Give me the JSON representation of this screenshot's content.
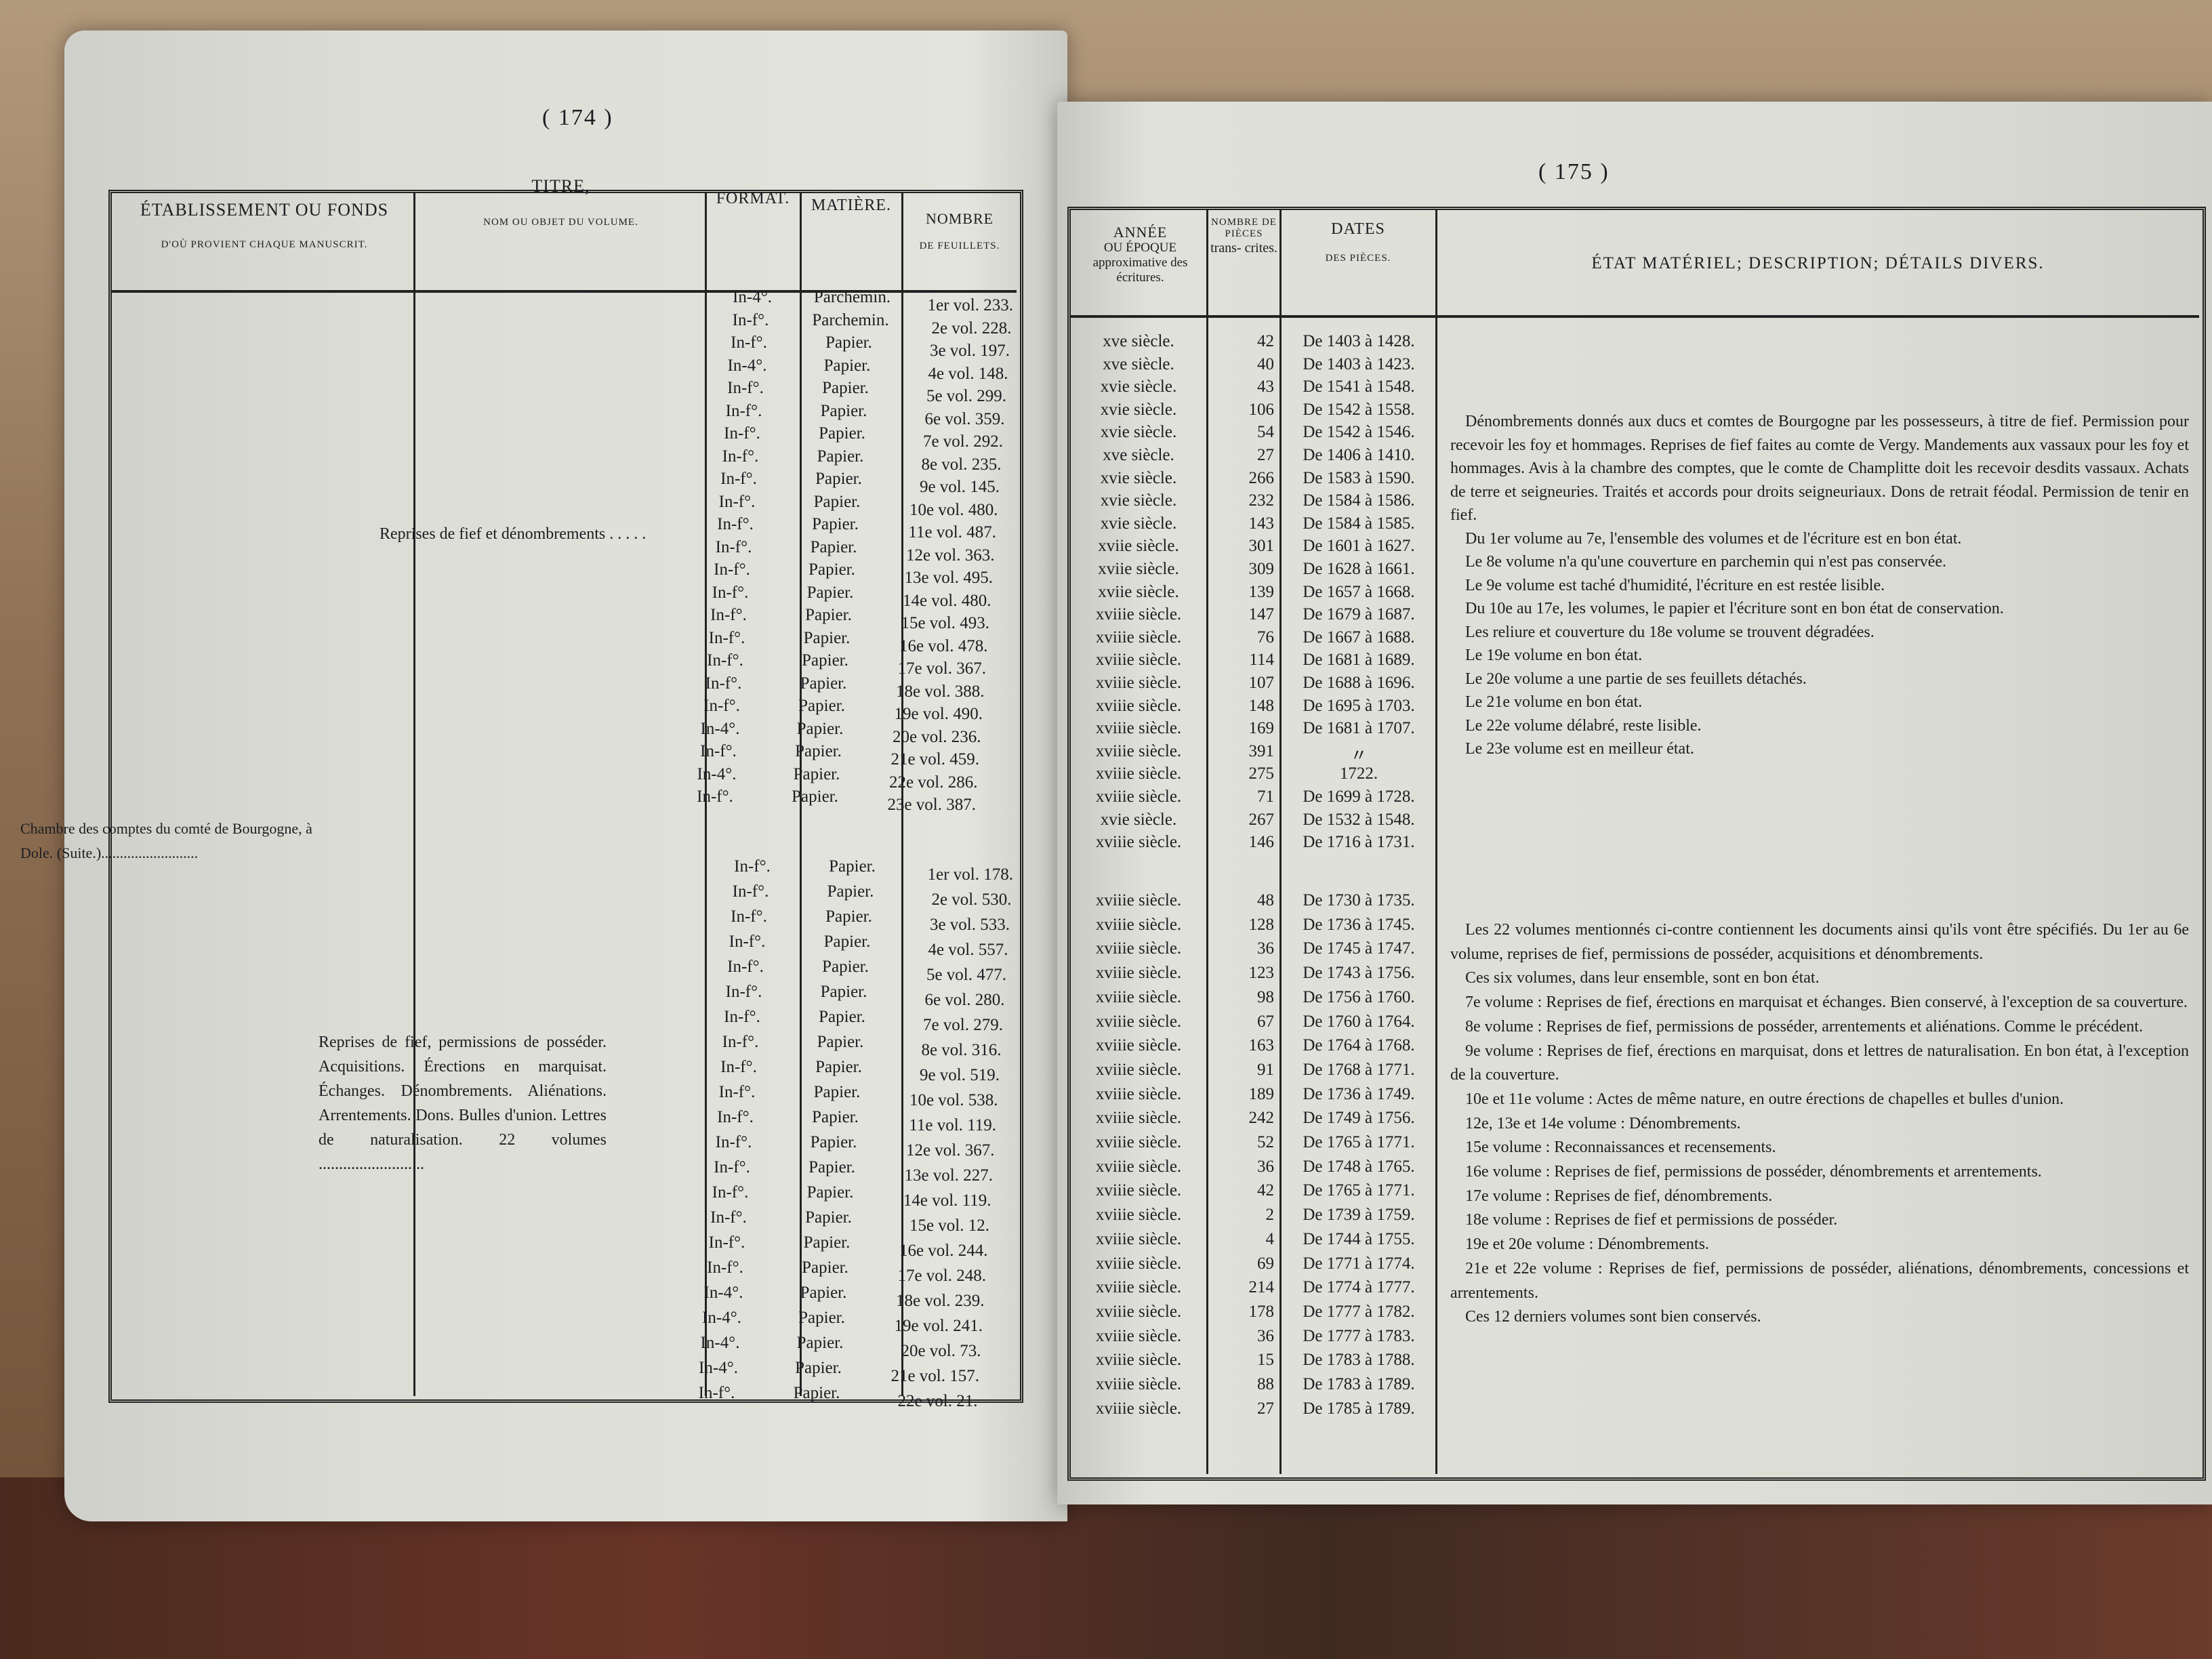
{
  "left_page": {
    "page_number": "( 174 )",
    "headers": {
      "etablissement": "ÉTABLISSEMENT OU FONDS",
      "etablissement_sub": "D'OÙ PROVIENT CHAQUE MANUSCRIT.",
      "titre": "TITRE,",
      "titre_sub": "NOM OU OBJET DU VOLUME.",
      "format": "FORMAT.",
      "matiere": "MATIÈRE.",
      "nombre": "NOMBRE",
      "nombre_sub": "DE FEUILLETS."
    },
    "etablissement": "Chambre des comptes du comté de Bourgogne, à Dole. (Suite.)..........................",
    "groups": [
      {
        "titre": "Reprises de fief et dénombrements . . . . .",
        "rows": [
          [
            "In-4°.",
            "Parchemin.",
            "1er vol. 233."
          ],
          [
            "In-f°.",
            "Parchemin.",
            "2e vol. 228."
          ],
          [
            "In-f°.",
            "Papier.",
            "3e vol. 197."
          ],
          [
            "In-4°.",
            "Papier.",
            "4e vol. 148."
          ],
          [
            "In-f°.",
            "Papier.",
            "5e vol. 299."
          ],
          [
            "In-f°.",
            "Papier.",
            "6e vol. 359."
          ],
          [
            "In-f°.",
            "Papier.",
            "7e vol. 292."
          ],
          [
            "In-f°.",
            "Papier.",
            "8e vol. 235."
          ],
          [
            "In-f°.",
            "Papier.",
            "9e vol. 145."
          ],
          [
            "In-f°.",
            "Papier.",
            "10e vol. 480."
          ],
          [
            "In-f°.",
            "Papier.",
            "11e vol. 487."
          ],
          [
            "In-f°.",
            "Papier.",
            "12e vol. 363."
          ],
          [
            "In-f°.",
            "Papier.",
            "13e vol. 495."
          ],
          [
            "In-f°.",
            "Papier.",
            "14e vol. 480."
          ],
          [
            "In-f°.",
            "Papier.",
            "15e vol. 493."
          ],
          [
            "In-f°.",
            "Papier.",
            "16e vol. 478."
          ],
          [
            "In-f°.",
            "Papier.",
            "17e vol. 367."
          ],
          [
            "In-f°.",
            "Papier.",
            "18e vol. 388."
          ],
          [
            "In-f°.",
            "Papier.",
            "19e vol. 490."
          ],
          [
            "In-4°.",
            "Papier.",
            "20e vol. 236."
          ],
          [
            "In-f°.",
            "Papier.",
            "21e vol. 459."
          ],
          [
            "In-4°.",
            "Papier.",
            "22e vol. 286."
          ],
          [
            "In-f°.",
            "Papier.",
            "23e vol. 387."
          ]
        ]
      },
      {
        "titre": "Reprises de fief, permissions de posséder. Acquisitions. Érections en marquisat. Échanges. Dénombrements. Aliénations. Arrentements. Dons. Bulles d'union. Lettres de naturalisation. 22 volumes ..........................",
        "rows": [
          [
            "In-f°.",
            "Papier.",
            "1er vol. 178."
          ],
          [
            "In-f°.",
            "Papier.",
            "2e vol. 530."
          ],
          [
            "In-f°.",
            "Papier.",
            "3e vol. 533."
          ],
          [
            "In-f°.",
            "Papier.",
            "4e vol. 557."
          ],
          [
            "In-f°.",
            "Papier.",
            "5e vol. 477."
          ],
          [
            "In-f°.",
            "Papier.",
            "6e vol. 280."
          ],
          [
            "In-f°.",
            "Papier.",
            "7e vol. 279."
          ],
          [
            "In-f°.",
            "Papier.",
            "8e vol. 316."
          ],
          [
            "In-f°.",
            "Papier.",
            "9e vol. 519."
          ],
          [
            "In-f°.",
            "Papier.",
            "10e vol. 538."
          ],
          [
            "In-f°.",
            "Papier.",
            "11e vol. 119."
          ],
          [
            "In-f°.",
            "Papier.",
            "12e vol. 367."
          ],
          [
            "In-f°.",
            "Papier.",
            "13e vol. 227."
          ],
          [
            "In-f°.",
            "Papier.",
            "14e vol. 119."
          ],
          [
            "In-f°.",
            "Papier.",
            "15e vol. 12."
          ],
          [
            "In-f°.",
            "Papier.",
            "16e vol. 244."
          ],
          [
            "In-f°.",
            "Papier.",
            "17e vol. 248."
          ],
          [
            "In-4°.",
            "Papier.",
            "18e vol. 239."
          ],
          [
            "In-4°.",
            "Papier.",
            "19e vol. 241."
          ],
          [
            "In-4°.",
            "Papier.",
            "20e vol. 73."
          ],
          [
            "In-4°.",
            "Papier.",
            "21e vol. 157."
          ],
          [
            "In-f°.",
            "Papier.",
            "22e vol. 21."
          ]
        ]
      }
    ]
  },
  "right_page": {
    "page_number": "( 175 )",
    "headers": {
      "annee": "ANNÉE",
      "annee_sub": "OU ÉPOQUE approximative des écritures.",
      "nombre": "NOMBRE DE PIÈCES",
      "nombre_sub": "trans- crites.",
      "dates": "DATES",
      "dates_sub": "DES PIÈCES.",
      "etat": "ÉTAT MATÉRIEL; DESCRIPTION; DÉTAILS DIVERS."
    },
    "groups": [
      {
        "rows": [
          [
            "xve siècle.",
            "42",
            "De 1403 à 1428."
          ],
          [
            "xve siècle.",
            "40",
            "De 1403 à 1423."
          ],
          [
            "xvie siècle.",
            "43",
            "De 1541 à 1548."
          ],
          [
            "xvie siècle.",
            "106",
            "De 1542 à 1558."
          ],
          [
            "xvie siècle.",
            "54",
            "De 1542 à 1546."
          ],
          [
            "xve siècle.",
            "27",
            "De 1406 à 1410."
          ],
          [
            "xvie siècle.",
            "266",
            "De 1583 à 1590."
          ],
          [
            "xvie siècle.",
            "232",
            "De 1584 à 1586."
          ],
          [
            "xvie siècle.",
            "143",
            "De 1584 à 1585."
          ],
          [
            "xviie siècle.",
            "301",
            "De 1601 à 1627."
          ],
          [
            "xviie siècle.",
            "309",
            "De 1628 à 1661."
          ],
          [
            "xviie siècle.",
            "139",
            "De 1657 à 1668."
          ],
          [
            "xviiie siècle.",
            "147",
            "De 1679 à 1687."
          ],
          [
            "xviiie siècle.",
            "76",
            "De 1667 à 1688."
          ],
          [
            "xviiie siècle.",
            "114",
            "De 1681 à 1689."
          ],
          [
            "xviiie siècle.",
            "107",
            "De 1688 à 1696."
          ],
          [
            "xviiie siècle.",
            "148",
            "De 1695 à 1703."
          ],
          [
            "xviiie siècle.",
            "169",
            "De 1681 à 1707."
          ],
          [
            "xviiie siècle.",
            "391",
            "〃"
          ],
          [
            "xviiie siècle.",
            "275",
            "1722."
          ],
          [
            "xviiie siècle.",
            "71",
            "De 1699 à 1728."
          ],
          [
            "xvie siècle.",
            "267",
            "De 1532 à 1548."
          ],
          [
            "xviiie siècle.",
            "146",
            "De 1716 à 1731."
          ]
        ],
        "description": [
          "Dénombrements donnés aux ducs et comtes de Bourgogne par les possesseurs, à titre de fief. Permission pour recevoir les foy et hommages. Reprises de fief faites au comte de Vergy. Mandements aux vassaux pour les foy et hommages. Avis à la chambre des comptes, que le comte de Champlitte doit les recevoir desdits vassaux. Achats de terre et seigneuries. Traités et accords pour droits seigneuriaux. Dons de retrait féodal. Permission de tenir en fief.",
          "Du 1er volume au 7e, l'ensemble des volumes et de l'écriture est en bon état.",
          "Le 8e volume n'a qu'une couverture en parchemin qui n'est pas conservée.",
          "Le 9e volume est taché d'humidité, l'écriture en est restée lisible.",
          "Du 10e au 17e, les volumes, le papier et l'écriture sont en bon état de conservation.",
          "Les reliure et couverture du 18e volume se trouvent dégradées.",
          "Le 19e volume en bon état.",
          "Le 20e volume a une partie de ses feuillets détachés.",
          "Le 21e volume en bon état.",
          "Le 22e volume délabré, reste lisible.",
          "Le 23e volume est en meilleur état."
        ]
      },
      {
        "rows": [
          [
            "xviiie siècle.",
            "48",
            "De 1730 à 1735."
          ],
          [
            "xviiie siècle.",
            "128",
            "De 1736 à 1745."
          ],
          [
            "xviiie siècle.",
            "36",
            "De 1745 à 1747."
          ],
          [
            "xviiie siècle.",
            "123",
            "De 1743 à 1756."
          ],
          [
            "xviiie siècle.",
            "98",
            "De 1756 à 1760."
          ],
          [
            "xviiie siècle.",
            "67",
            "De 1760 à 1764."
          ],
          [
            "xviiie siècle.",
            "163",
            "De 1764 à 1768."
          ],
          [
            "xviiie siècle.",
            "91",
            "De 1768 à 1771."
          ],
          [
            "xviiie siècle.",
            "189",
            "De 1736 à 1749."
          ],
          [
            "xviiie siècle.",
            "242",
            "De 1749 à 1756."
          ],
          [
            "xviiie siècle.",
            "52",
            "De 1765 à 1771."
          ],
          [
            "xviiie siècle.",
            "36",
            "De 1748 à 1765."
          ],
          [
            "xviiie siècle.",
            "42",
            "De 1765 à 1771."
          ],
          [
            "xviiie siècle.",
            "2",
            "De 1739 à 1759."
          ],
          [
            "xviiie siècle.",
            "4",
            "De 1744 à 1755."
          ],
          [
            "xviiie siècle.",
            "69",
            "De 1771 à 1774."
          ],
          [
            "xviiie siècle.",
            "214",
            "De 1774 à 1777."
          ],
          [
            "xviiie siècle.",
            "178",
            "De 1777 à 1782."
          ],
          [
            "xviiie siècle.",
            "36",
            "De 1777 à 1783."
          ],
          [
            "xviiie siècle.",
            "15",
            "De 1783 à 1788."
          ],
          [
            "xviiie siècle.",
            "88",
            "De 1783 à 1789."
          ],
          [
            "xviiie siècle.",
            "27",
            "De 1785 à 1789."
          ]
        ],
        "description": [
          "Les 22 volumes mentionnés ci-contre contiennent les documents ainsi qu'ils vont être spécifiés. Du 1er au 6e volume, reprises de fief, permissions de posséder, acquisitions et dénombrements.",
          "Ces six volumes, dans leur ensemble, sont en bon état.",
          "7e volume : Reprises de fief, érections en marquisat et échanges. Bien conservé, à l'exception de sa couverture.",
          "8e volume : Reprises de fief, permissions de posséder, arrentements et aliénations. Comme le précédent.",
          "9e volume : Reprises de fief, érections en marquisat, dons et lettres de naturalisation. En bon état, à l'exception de la couverture.",
          "10e et 11e volume : Actes de même nature, en outre érections de chapelles et bulles d'union.",
          "12e, 13e et 14e volume : Dénombrements.",
          "15e volume : Reconnaissances et recensements.",
          "16e volume : Reprises de fief, permissions de posséder, dénombrements et arrentements.",
          "17e volume : Reprises de fief, dénombrements.",
          "18e volume : Reprises de fief et permissions de posséder.",
          "19e et 20e volume : Dénombrements.",
          "21e et 22e volume : Reprises de fief, permissions de posséder, aliénations, dénombrements, concessions et arrentements.",
          "Ces 12 derniers volumes sont bien conservés."
        ]
      }
    ]
  }
}
